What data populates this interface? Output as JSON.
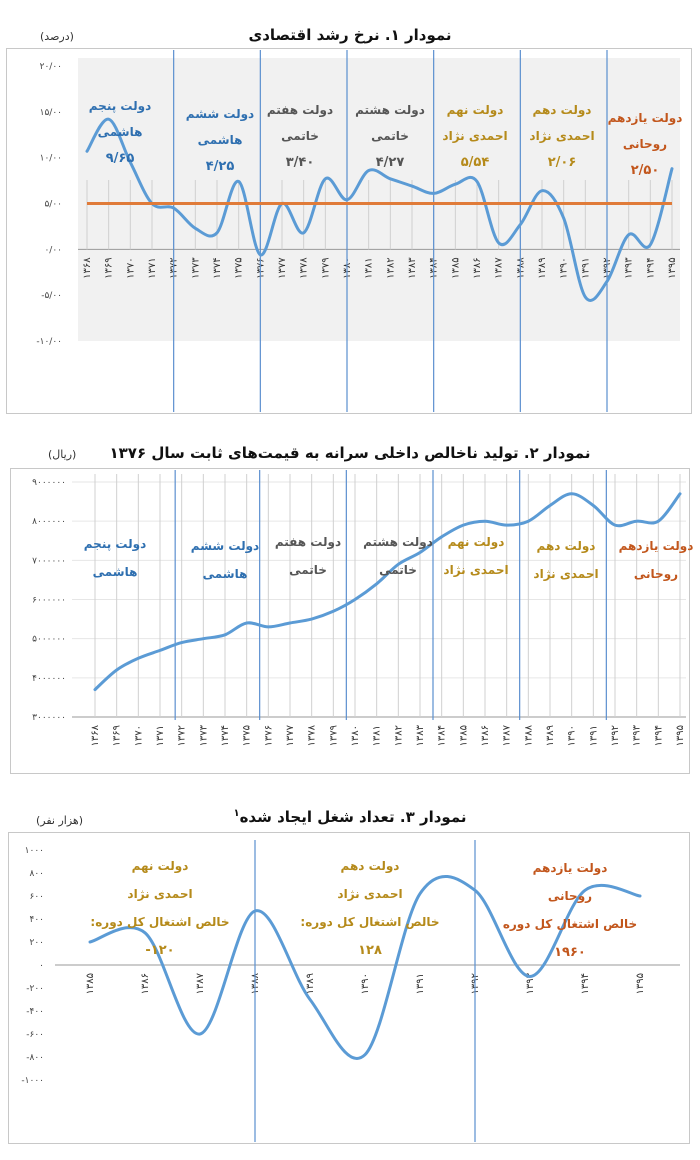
{
  "chart_data": [
    {
      "type": "line",
      "title": "نمودار ۱. نرخ رشد اقتصادی",
      "unit": "(درصد)",
      "y_ticks": [
        "۲۰/۰۰",
        "۱۵/۰۰",
        "۱۰/۰۰",
        "۵/۰۰",
        "۰/۰۰",
        "-۵/۰۰",
        "-۱۰/۰۰"
      ],
      "ylim": [
        -10,
        20
      ],
      "x": [
        "۱۳۶۸",
        "۱۳۶۹",
        "۱۳۷۰",
        "۱۳۷۱",
        "۱۳۷۲",
        "۱۳۷۳",
        "۱۳۷۴",
        "۱۳۷۵",
        "۱۳۷۶",
        "۱۳۷۷",
        "۱۳۷۸",
        "۱۳۷۹",
        "۱۳۸۰",
        "۱۳۸۱",
        "۱۳۸۲",
        "۱۳۸۳",
        "۱۳۸۴",
        "۱۳۸۵",
        "۱۳۸۶",
        "۱۳۸۷",
        "۱۳۸۸",
        "۱۳۸۹",
        "۱۳۹۰",
        "۱۳۹۱",
        "۱۳۹۲",
        "۱۳۹۳",
        "۱۳۹۴",
        "۱۳۹۵"
      ],
      "series": [
        {
          "values": [
            10.7,
            14.2,
            9.5,
            5.0,
            4.5,
            2.3,
            1.8,
            7.4,
            -0.6,
            5.0,
            1.8,
            7.7,
            5.4,
            8.6,
            7.7,
            6.9,
            6.1,
            7.1,
            7.4,
            0.7,
            2.7,
            6.4,
            3.4,
            -5.2,
            -3.5,
            1.6,
            0.5,
            8.8
          ]
        },
        {
          "values": [
            5.0,
            5.0,
            5.0,
            5.0,
            5.0,
            5.0,
            5.0,
            5.0,
            5.0,
            5.0,
            5.0,
            5.0,
            5.0,
            5.0,
            5.0,
            5.0,
            5.0,
            5.0,
            5.0,
            5.0,
            5.0,
            5.0,
            5.0,
            5.0,
            5.0,
            5.0,
            5.0,
            5.0
          ]
        }
      ],
      "periods": [
        {
          "line1": "دولت پنجم",
          "line2": "هاشمی",
          "value": "۹/۶۵",
          "color": "#2e6fb0"
        },
        {
          "line1": "دولت ششم",
          "line2": "هاشمی",
          "value": "۴/۲۵",
          "color": "#2e6fb0"
        },
        {
          "line1": "دولت هفتم",
          "line2": "خاتمی",
          "value": "۳/۴۰",
          "color": "#555555"
        },
        {
          "line1": "دولت هشتم",
          "line2": "خاتمی",
          "value": "۴/۲۷",
          "color": "#555555"
        },
        {
          "line1": "دولت نهم",
          "line2": "احمدی نژاد",
          "value": "۵/۵۴",
          "color": "#b58a1a"
        },
        {
          "line1": "دولت دهم",
          "line2": "احمدی نژاد",
          "value": "۲/۰۶",
          "color": "#b58a1a"
        },
        {
          "line1": "دولت یازدهم",
          "line2": "روحانی",
          "value": "۲/۵۰",
          "color": "#c2561c"
        }
      ]
    },
    {
      "type": "line",
      "title": "نمودار ۲. تولید ناخالص داخلی سرانه به قیمت‌های ثابت سال ۱۳۷۶",
      "unit": "(ریال)",
      "y_ticks": [
        "۹۰۰۰۰۰۰",
        "۸۰۰۰۰۰۰",
        "۷۰۰۰۰۰۰",
        "۶۰۰۰۰۰۰",
        "۵۰۰۰۰۰۰",
        "۴۰۰۰۰۰۰",
        "۳۰۰۰۰۰۰"
      ],
      "ylim": [
        3000000,
        9000000
      ],
      "x": [
        "۱۳۶۸",
        "۱۳۶۹",
        "۱۳۷۰",
        "۱۳۷۱",
        "۱۳۷۲",
        "۱۳۷۳",
        "۱۳۷۴",
        "۱۳۷۵",
        "۱۳۷۶",
        "۱۳۷۷",
        "۱۳۷۸",
        "۱۳۷۹",
        "۱۳۸۰",
        "۱۳۸۱",
        "۱۳۸۲",
        "۱۳۸۳",
        "۱۳۸۴",
        "۱۳۸۵",
        "۱۳۸۶",
        "۱۳۸۷",
        "۱۳۸۸",
        "۱۳۸۹",
        "۱۳۹۰",
        "۱۳۹۱",
        "۱۳۹۲",
        "۱۳۹۳",
        "۱۳۹۴",
        "۱۳۹۵"
      ],
      "series": [
        {
          "values": [
            3700000,
            4200000,
            4500000,
            4700000,
            4900000,
            5000000,
            5100000,
            5400000,
            5300000,
            5400000,
            5500000,
            5700000,
            6000000,
            6400000,
            6900000,
            7200000,
            7600000,
            7900000,
            8000000,
            7900000,
            8000000,
            8400000,
            8700000,
            8400000,
            7900000,
            8000000,
            8000000,
            8700000
          ]
        }
      ],
      "periods": [
        {
          "line1": "دولت پنجم",
          "line2": "هاشمی",
          "color": "#2e6fb0"
        },
        {
          "line1": "دولت ششم",
          "line2": "هاشمی",
          "color": "#2e6fb0"
        },
        {
          "line1": "دولت هفتم",
          "line2": "خاتمی",
          "color": "#555555"
        },
        {
          "line1": "دولت هشتم",
          "line2": "خاتمی",
          "color": "#555555"
        },
        {
          "line1": "دولت نهم",
          "line2": "احمدی نژاد",
          "color": "#b58a1a"
        },
        {
          "line1": "دولت دهم",
          "line2": "احمدی نژاد",
          "color": "#b58a1a"
        },
        {
          "line1": "دولت یازدهم",
          "line2": "روحانی",
          "color": "#c2561c"
        }
      ]
    },
    {
      "type": "line",
      "title": "نمودار ۳. تعداد شغل ایجاد شده",
      "title_sup": "۱",
      "unit": "(هزار نفر)",
      "y_ticks": [
        "۱۰۰۰",
        "۸۰۰",
        "۶۰۰",
        "۴۰۰",
        "۲۰۰",
        "۰",
        "-۲۰۰",
        "-۴۰۰",
        "-۶۰۰",
        "-۸۰۰",
        "-۱۰۰۰"
      ],
      "ylim": [
        -1000,
        1000
      ],
      "x": [
        "۱۳۸۵",
        "۱۳۸۶",
        "۱۳۸۷",
        "۱۳۸۸",
        "۱۳۸۹",
        "۱۳۹۰",
        "۱۳۹۱",
        "۱۳۹۲",
        "۱۳۹۳",
        "۱۳۹۴",
        "۱۳۹۵"
      ],
      "series": [
        {
          "values": [
            200,
            280,
            -600,
            470,
            -300,
            -780,
            620,
            650,
            -100,
            650,
            600
          ]
        }
      ],
      "periods": [
        {
          "line1": "دولت نهم",
          "line2": "احمدی نژاد",
          "line3": "خالص اشتغال کل دوره:",
          "value": "۱۲۰-",
          "color": "#b58a1a"
        },
        {
          "line1": "دولت دهم",
          "line2": "احمدی نژاد",
          "line3": "خالص اشتغال کل دوره:",
          "value": "۱۲۸",
          "color": "#b58a1a"
        },
        {
          "line1": "دولت یازدهم",
          "line2": "روحانی",
          "line3": "خالص اشتغال کل دوره",
          "value": "۱۹۶۰",
          "color": "#c2561c"
        }
      ]
    }
  ]
}
